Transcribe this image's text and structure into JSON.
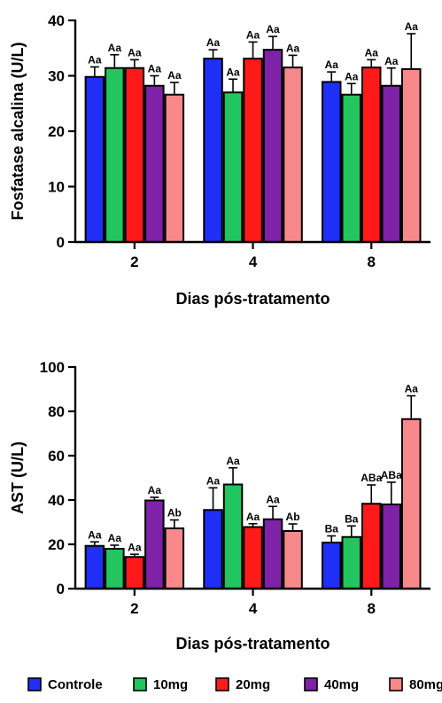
{
  "chart_data": [
    {
      "type": "bar",
      "ylabel": "Fosfatase alcalina (U/L)",
      "xlabel": "Dias pós-tratamento",
      "categories": [
        "2",
        "4",
        "8"
      ],
      "ylim": [
        0,
        40
      ],
      "yticks": [
        0,
        10,
        20,
        30,
        40
      ],
      "series": [
        {
          "name": "Controle",
          "color": "#1f2ff5",
          "values": [
            29.8,
            33.1,
            28.9
          ],
          "errors": [
            1.8,
            1.6,
            1.8
          ],
          "labels": [
            "Aa",
            "Aa",
            "Aa"
          ]
        },
        {
          "name": "10mg",
          "color": "#22c55e",
          "values": [
            31.4,
            27.0,
            26.6
          ],
          "errors": [
            2.4,
            2.4,
            2.0
          ],
          "labels": [
            "Aa",
            "Aa",
            "Aa"
          ]
        },
        {
          "name": "20mg",
          "color": "#ff1a1a",
          "values": [
            31.4,
            33.1,
            31.5
          ],
          "errors": [
            1.5,
            3.0,
            1.4
          ],
          "labels": [
            "Aa",
            "Aa",
            "Aa"
          ]
        },
        {
          "name": "40mg",
          "color": "#7e22a8",
          "values": [
            28.2,
            34.7,
            28.2
          ],
          "errors": [
            1.8,
            2.4,
            3.2
          ],
          "labels": [
            "Aa",
            "Aa",
            "Aa"
          ]
        },
        {
          "name": "80mg",
          "color": "#f8898a",
          "values": [
            26.6,
            31.5,
            31.2
          ],
          "errors": [
            2.2,
            2.2,
            6.4
          ],
          "labels": [
            "Aa",
            "Aa",
            "Aa"
          ]
        }
      ]
    },
    {
      "type": "bar",
      "ylabel": "AST (U/L)",
      "xlabel": "Dias pós-tratamento",
      "categories": [
        "2",
        "4",
        "8"
      ],
      "ylim": [
        0,
        100
      ],
      "yticks": [
        0,
        20,
        40,
        60,
        80,
        100
      ],
      "series": [
        {
          "name": "Controle",
          "color": "#1f2ff5",
          "values": [
            19.3,
            35.5,
            20.8
          ],
          "errors": [
            1.8,
            10.0,
            3.0
          ],
          "labels": [
            "Aa",
            "Aa",
            "Ba"
          ]
        },
        {
          "name": "10mg",
          "color": "#22c55e",
          "values": [
            18.0,
            47.0,
            23.3
          ],
          "errors": [
            1.6,
            7.5,
            5.0
          ],
          "labels": [
            "Aa",
            "Aa",
            "Ba"
          ]
        },
        {
          "name": "20mg",
          "color": "#ff1a1a",
          "values": [
            14.3,
            27.8,
            38.3
          ],
          "errors": [
            1.2,
            1.5,
            8.5
          ],
          "labels": [
            "Aa",
            "Aa",
            "ABa"
          ]
        },
        {
          "name": "40mg",
          "color": "#7e22a8",
          "values": [
            39.8,
            31.3,
            38.0
          ],
          "errors": [
            1.4,
            5.8,
            10.0
          ],
          "labels": [
            "Aa",
            "Aa",
            "ABa"
          ]
        },
        {
          "name": "80mg",
          "color": "#f8898a",
          "values": [
            27.2,
            26.0,
            76.5
          ],
          "errors": [
            3.8,
            3.2,
            10.5
          ],
          "labels": [
            "Ab",
            "Ab",
            "Aa"
          ]
        }
      ]
    }
  ],
  "legend": {
    "items": [
      {
        "label": "Controle",
        "color": "#1f2ff5"
      },
      {
        "label": "10mg",
        "color": "#22c55e"
      },
      {
        "label": "20mg",
        "color": "#ff1a1a"
      },
      {
        "label": "40mg",
        "color": "#7e22a8"
      },
      {
        "label": "80mg",
        "color": "#f8898a"
      }
    ]
  }
}
